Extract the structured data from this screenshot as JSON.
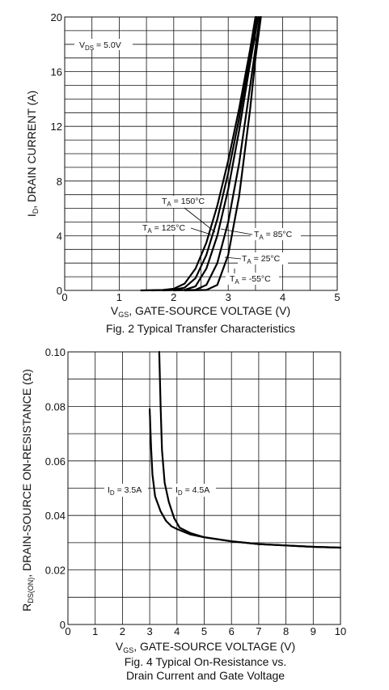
{
  "chart_data": [
    {
      "type": "line",
      "title": "Fig. 2 Typical Transfer Characteristics",
      "xlabel": "V_GS, GATE-SOURCE VOLTAGE (V)",
      "ylabel": "I_D, DRAIN CURRENT (A)",
      "xlim": [
        0,
        5
      ],
      "ylim": [
        0,
        20
      ],
      "x_ticks": [
        "0",
        "1",
        "2",
        "3",
        "4",
        "5"
      ],
      "y_ticks": [
        "0",
        "4",
        "8",
        "12",
        "16",
        "20"
      ],
      "annotation": "V_DS = 5.0V",
      "grid": true,
      "series": [
        {
          "name": "T_A = 150°C",
          "points": [
            [
              1.4,
              0
            ],
            [
              1.8,
              0.03
            ],
            [
              2.0,
              0.12
            ],
            [
              2.2,
              0.5
            ],
            [
              2.4,
              1.6
            ],
            [
              2.6,
              3.5
            ],
            [
              2.8,
              6.2
            ],
            [
              3.0,
              9.5
            ],
            [
              3.2,
              13.3
            ],
            [
              3.4,
              17.6
            ],
            [
              3.5,
              20
            ]
          ]
        },
        {
          "name": "T_A = 125°C",
          "points": [
            [
              1.6,
              0
            ],
            [
              2.0,
              0.05
            ],
            [
              2.2,
              0.2
            ],
            [
              2.4,
              0.9
            ],
            [
              2.6,
              2.6
            ],
            [
              2.8,
              5.2
            ],
            [
              3.0,
              8.6
            ],
            [
              3.2,
              12.6
            ],
            [
              3.4,
              17.2
            ],
            [
              3.52,
              20
            ]
          ]
        },
        {
          "name": "T_A = 85°C",
          "points": [
            [
              1.8,
              0
            ],
            [
              2.2,
              0.04
            ],
            [
              2.4,
              0.3
            ],
            [
              2.6,
              1.6
            ],
            [
              2.8,
              4.0
            ],
            [
              3.0,
              7.4
            ],
            [
              3.2,
              11.7
            ],
            [
              3.4,
              16.6
            ],
            [
              3.55,
              20
            ]
          ]
        },
        {
          "name": "T_A = 25°C",
          "points": [
            [
              2.0,
              0
            ],
            [
              2.4,
              0.04
            ],
            [
              2.6,
              0.4
            ],
            [
              2.8,
              2.0
            ],
            [
              3.0,
              5.0
            ],
            [
              3.2,
              9.3
            ],
            [
              3.4,
              14.9
            ],
            [
              3.58,
              20
            ]
          ]
        },
        {
          "name": "T_A = -55°C",
          "points": [
            [
              2.2,
              0
            ],
            [
              2.6,
              0.03
            ],
            [
              2.8,
              0.4
            ],
            [
              3.0,
              2.6
            ],
            [
              3.2,
              6.9
            ],
            [
              3.4,
              13.2
            ],
            [
              3.5,
              17.0
            ],
            [
              3.6,
              20
            ]
          ]
        }
      ],
      "labels": [
        "T_A = 150°C",
        "T_A = 125°C",
        "T_A = 85°C",
        "T_A = 25°C",
        "T_A = -55°C"
      ]
    },
    {
      "type": "line",
      "title": "Fig. 4 Typical On-Resistance  vs.",
      "subtitle": "Drain Current and Gate Voltage",
      "xlabel": "V_GS, GATE-SOURCE VOLTAGE (V)",
      "ylabel": "R_DS(ON), DRAIN-SOURCE ON-RESISTANCE (Ω)",
      "xlim": [
        0,
        10
      ],
      "ylim": [
        0,
        0.1
      ],
      "x_ticks": [
        "0",
        "1",
        "2",
        "3",
        "4",
        "5",
        "6",
        "7",
        "8",
        "9",
        "10"
      ],
      "y_ticks": [
        "0",
        "0.02",
        "0.04",
        "0.06",
        "0.08",
        "0.10"
      ],
      "grid": true,
      "series": [
        {
          "name": "I_D = 3.5A",
          "points": [
            [
              3.0,
              0.079
            ],
            [
              3.05,
              0.065
            ],
            [
              3.1,
              0.055
            ],
            [
              3.2,
              0.047
            ],
            [
              3.4,
              0.0415
            ],
            [
              3.6,
              0.038
            ],
            [
              3.8,
              0.036
            ],
            [
              4.0,
              0.035
            ],
            [
              4.5,
              0.033
            ],
            [
              5,
              0.032
            ],
            [
              6,
              0.0305
            ],
            [
              7,
              0.0295
            ],
            [
              8,
              0.029
            ],
            [
              9,
              0.0285
            ],
            [
              10,
              0.0282
            ]
          ]
        },
        {
          "name": "I_D = 4.5A",
          "points": [
            [
              3.35,
              0.1
            ],
            [
              3.4,
              0.08
            ],
            [
              3.45,
              0.064
            ],
            [
              3.55,
              0.052
            ],
            [
              3.7,
              0.045
            ],
            [
              3.9,
              0.039
            ],
            [
              4.1,
              0.0355
            ],
            [
              4.5,
              0.0335
            ],
            [
              5,
              0.032
            ],
            [
              6,
              0.0305
            ],
            [
              7,
              0.0295
            ],
            [
              8,
              0.029
            ],
            [
              9,
              0.0285
            ],
            [
              10,
              0.0282
            ]
          ]
        }
      ],
      "labels": [
        "I_D = 3.5A",
        "I_D = 4.5A"
      ]
    }
  ]
}
